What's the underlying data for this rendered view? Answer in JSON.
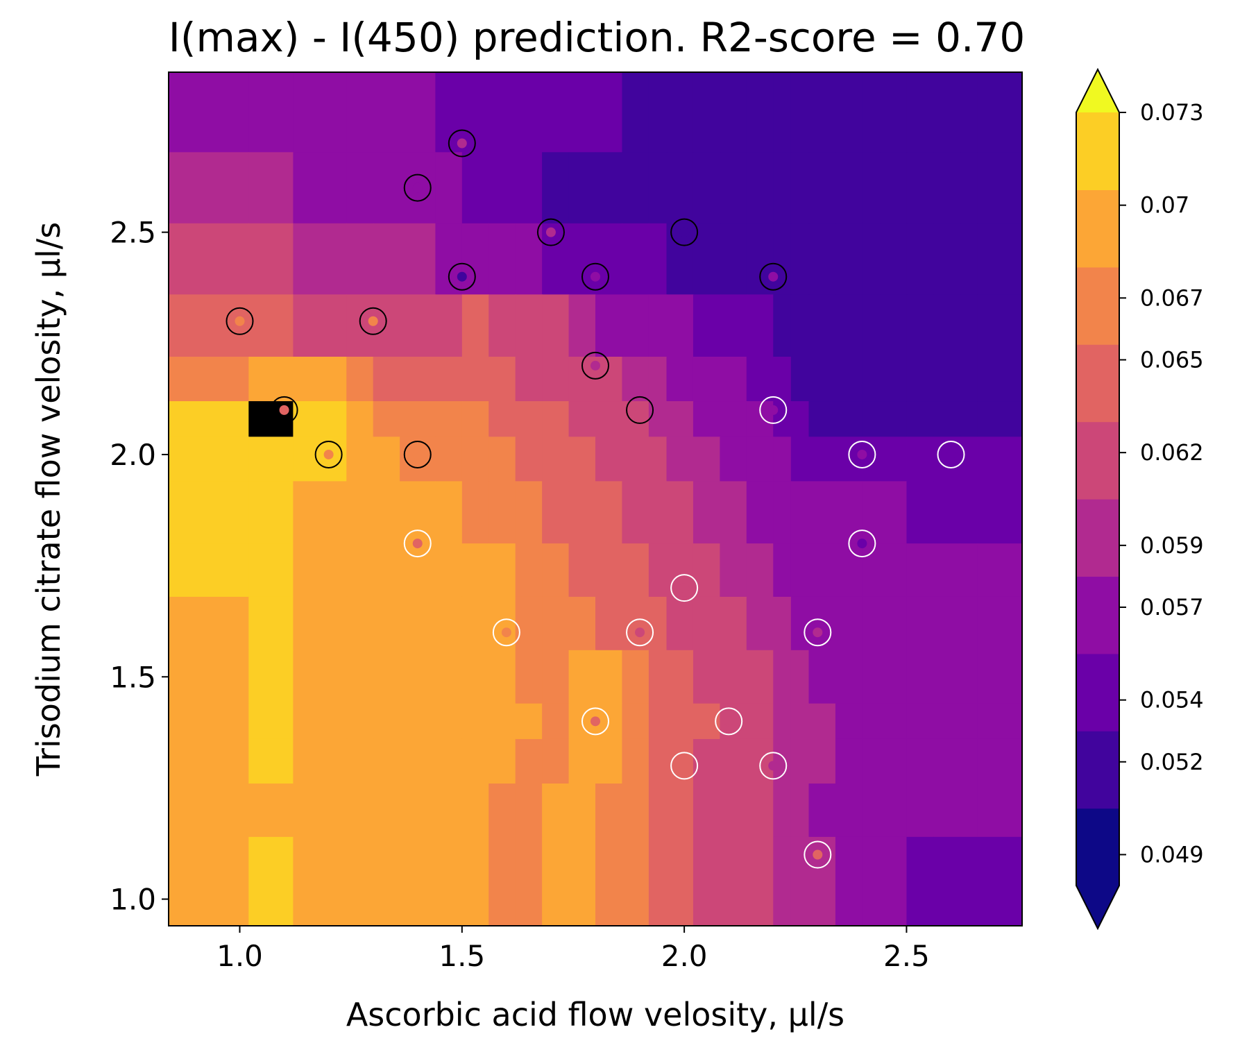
{
  "chart_data": {
    "type": "heatmap",
    "subtype": "filled contour with scatter overlay",
    "title": "I(max) - I(450) prediction. R2-score = 0.70",
    "xlabel": "Ascorbic acid flow velosity, μl/s",
    "ylabel": "Trisodium citrate flow velosity, μl/s",
    "xlim": [
      0.84,
      2.76
    ],
    "ylim": [
      0.94,
      2.86
    ],
    "x_ticks": [
      1.0,
      1.5,
      2.0,
      2.5
    ],
    "x_tick_labels": [
      "1.0",
      "1.5",
      "2.0",
      "2.5"
    ],
    "y_ticks": [
      1.0,
      1.5,
      2.0,
      2.5
    ],
    "y_tick_labels": [
      "1.0",
      "1.5",
      "2.0",
      "2.5"
    ],
    "grid": false,
    "colormap": "plasma",
    "colorbar": {
      "extend": "both",
      "levels": [
        0.048,
        0.0505,
        0.053,
        0.0555,
        0.058,
        0.0605,
        0.063,
        0.0655,
        0.068,
        0.0705,
        0.073
      ],
      "tick_values": [
        0.049,
        0.052,
        0.054,
        0.057,
        0.059,
        0.062,
        0.065,
        0.067,
        0.07,
        0.073
      ],
      "tick_labels": [
        "0.049",
        "0.052",
        "0.054",
        "0.057",
        "0.059",
        "0.062",
        "0.065",
        "0.067",
        "0.07",
        "0.073"
      ],
      "colors": [
        "#0d0887",
        "#41049d",
        "#6a00a8",
        "#8f0da4",
        "#b12a90",
        "#cc4778",
        "#e16462",
        "#f2844b",
        "#fca636",
        "#fcce25"
      ],
      "under_color": "#0d0887",
      "over_color": "#f0f921"
    },
    "contour_rows": {
      "x_breaks": [
        0.84,
        1.02,
        1.12,
        1.24,
        1.3,
        1.36,
        1.44,
        1.5,
        1.56,
        1.62,
        1.68,
        1.74,
        1.8,
        1.86,
        1.92,
        1.96,
        2.02,
        2.08,
        2.14,
        2.2,
        2.24,
        2.28,
        2.34,
        2.4,
        2.44,
        2.5,
        2.56,
        2.62,
        2.66,
        2.76
      ],
      "rows": [
        {
          "y": [
            2.68,
            2.86
          ],
          "levels": [
            3,
            3,
            3,
            3,
            3,
            3,
            2,
            2,
            2,
            2,
            2,
            2,
            2,
            1,
            1,
            1,
            1,
            1,
            1,
            1,
            1,
            1,
            1,
            1,
            1,
            1,
            1,
            1,
            1
          ]
        },
        {
          "y": [
            2.52,
            2.68
          ],
          "levels": [
            4,
            4,
            3,
            3,
            3,
            3,
            3,
            2,
            2,
            2,
            1,
            1,
            1,
            1,
            1,
            1,
            1,
            1,
            1,
            1,
            1,
            1,
            1,
            1,
            1,
            1,
            1,
            1,
            1
          ]
        },
        {
          "y": [
            2.36,
            2.52
          ],
          "levels": [
            5,
            5,
            4,
            4,
            4,
            4,
            3,
            3,
            3,
            3,
            2,
            2,
            2,
            2,
            2,
            1,
            1,
            1,
            1,
            1,
            1,
            1,
            1,
            1,
            1,
            1,
            1,
            1,
            1
          ]
        },
        {
          "y": [
            2.22,
            2.36
          ],
          "levels": [
            6,
            6,
            5,
            5,
            5,
            5,
            5,
            6,
            5,
            5,
            5,
            4,
            3,
            3,
            3,
            3,
            2,
            2,
            2,
            1,
            1,
            1,
            1,
            1,
            1,
            1,
            1,
            1,
            1
          ]
        },
        {
          "y": [
            2.12,
            2.22
          ],
          "levels": [
            7,
            8,
            8,
            7,
            6,
            6,
            6,
            6,
            6,
            5,
            5,
            5,
            5,
            4,
            4,
            3,
            3,
            3,
            2,
            2,
            1,
            1,
            1,
            1,
            1,
            1,
            1,
            1,
            1
          ]
        },
        {
          "y": [
            2.04,
            2.12
          ],
          "levels": [
            9,
            10,
            9,
            8,
            7,
            7,
            7,
            7,
            6,
            6,
            6,
            5,
            5,
            5,
            4,
            4,
            3,
            3,
            3,
            2,
            2,
            1,
            1,
            1,
            1,
            1,
            1,
            1,
            1
          ]
        },
        {
          "y": [
            1.94,
            2.04
          ],
          "levels": [
            9,
            9,
            9,
            8,
            8,
            7,
            7,
            7,
            7,
            6,
            6,
            6,
            5,
            5,
            5,
            4,
            4,
            3,
            3,
            3,
            2,
            2,
            2,
            2,
            2,
            2,
            2,
            2,
            2
          ]
        },
        {
          "y": [
            1.8,
            1.94
          ],
          "levels": [
            9,
            9,
            8,
            8,
            8,
            8,
            8,
            7,
            7,
            7,
            6,
            6,
            6,
            5,
            5,
            5,
            4,
            4,
            3,
            3,
            3,
            3,
            3,
            3,
            3,
            2,
            2,
            2,
            2
          ]
        },
        {
          "y": [
            1.68,
            1.8
          ],
          "levels": [
            9,
            9,
            8,
            8,
            8,
            8,
            8,
            8,
            8,
            7,
            7,
            6,
            6,
            6,
            5,
            5,
            5,
            4,
            4,
            3,
            3,
            3,
            3,
            3,
            3,
            3,
            3,
            3,
            3
          ]
        },
        {
          "y": [
            1.56,
            1.68
          ],
          "levels": [
            8,
            9,
            8,
            8,
            8,
            8,
            8,
            8,
            8,
            7,
            7,
            7,
            6,
            6,
            6,
            5,
            5,
            5,
            4,
            4,
            3,
            3,
            3,
            3,
            3,
            3,
            3,
            3,
            3
          ]
        },
        {
          "y": [
            1.44,
            1.56
          ],
          "levels": [
            8,
            9,
            8,
            8,
            8,
            8,
            8,
            8,
            8,
            7,
            7,
            8,
            8,
            7,
            6,
            6,
            5,
            5,
            5,
            4,
            4,
            3,
            3,
            3,
            3,
            3,
            3,
            3,
            3
          ]
        },
        {
          "y": [
            1.36,
            1.44
          ],
          "levels": [
            8,
            9,
            8,
            8,
            8,
            8,
            8,
            8,
            8,
            8,
            7,
            8,
            8,
            7,
            6,
            6,
            6,
            5,
            5,
            4,
            4,
            4,
            3,
            3,
            3,
            3,
            3,
            3,
            3
          ]
        },
        {
          "y": [
            1.26,
            1.36
          ],
          "levels": [
            8,
            9,
            8,
            8,
            8,
            8,
            8,
            8,
            8,
            7,
            7,
            8,
            8,
            7,
            6,
            6,
            5,
            5,
            5,
            4,
            4,
            4,
            3,
            3,
            3,
            3,
            3,
            3,
            3
          ]
        },
        {
          "y": [
            1.14,
            1.26
          ],
          "levels": [
            8,
            8,
            8,
            8,
            8,
            8,
            8,
            8,
            7,
            7,
            8,
            8,
            7,
            7,
            6,
            6,
            5,
            5,
            5,
            4,
            4,
            3,
            3,
            3,
            3,
            3,
            3,
            3,
            3
          ]
        },
        {
          "y": [
            0.94,
            1.14
          ],
          "levels": [
            8,
            9,
            8,
            8,
            8,
            8,
            8,
            8,
            7,
            7,
            8,
            8,
            7,
            7,
            6,
            6,
            5,
            5,
            5,
            4,
            4,
            4,
            3,
            3,
            3,
            2,
            2,
            2,
            2
          ]
        }
      ]
    },
    "points_black": [
      {
        "x": 1.5,
        "y": 2.7,
        "value": 0.06
      },
      {
        "x": 1.4,
        "y": 2.6,
        "value": 0.057
      },
      {
        "x": 1.7,
        "y": 2.5,
        "value": 0.059
      },
      {
        "x": 2.0,
        "y": 2.5,
        "value": 0.052
      },
      {
        "x": 1.5,
        "y": 2.4,
        "value": 0.053
      },
      {
        "x": 1.8,
        "y": 2.4,
        "value": 0.057
      },
      {
        "x": 2.2,
        "y": 2.4,
        "value": 0.058
      },
      {
        "x": 1.0,
        "y": 2.3,
        "value": 0.066
      },
      {
        "x": 1.3,
        "y": 2.3,
        "value": 0.066
      },
      {
        "x": 1.8,
        "y": 2.2,
        "value": 0.06
      },
      {
        "x": 1.1,
        "y": 2.1,
        "value": 0.065
      },
      {
        "x": 1.9,
        "y": 2.1,
        "value": 0.063
      },
      {
        "x": 1.2,
        "y": 2.0,
        "value": 0.068
      },
      {
        "x": 1.4,
        "y": 2.0,
        "value": 0.067
      }
    ],
    "points_white": [
      {
        "x": 2.2,
        "y": 2.1,
        "value": 0.057
      },
      {
        "x": 2.4,
        "y": 2.0,
        "value": 0.056
      },
      {
        "x": 2.6,
        "y": 2.0,
        "value": 0.055
      },
      {
        "x": 1.4,
        "y": 1.8,
        "value": 0.065
      },
      {
        "x": 2.4,
        "y": 1.8,
        "value": 0.055
      },
      {
        "x": 2.0,
        "y": 1.7,
        "value": 0.062
      },
      {
        "x": 1.6,
        "y": 1.6,
        "value": 0.068
      },
      {
        "x": 1.9,
        "y": 1.6,
        "value": 0.063
      },
      {
        "x": 2.3,
        "y": 1.6,
        "value": 0.059
      },
      {
        "x": 1.8,
        "y": 1.4,
        "value": 0.064
      },
      {
        "x": 2.1,
        "y": 1.4,
        "value": 0.063
      },
      {
        "x": 2.0,
        "y": 1.3,
        "value": 0.064
      },
      {
        "x": 2.2,
        "y": 1.3,
        "value": 0.06
      },
      {
        "x": 2.3,
        "y": 1.1,
        "value": 0.064
      }
    ]
  }
}
